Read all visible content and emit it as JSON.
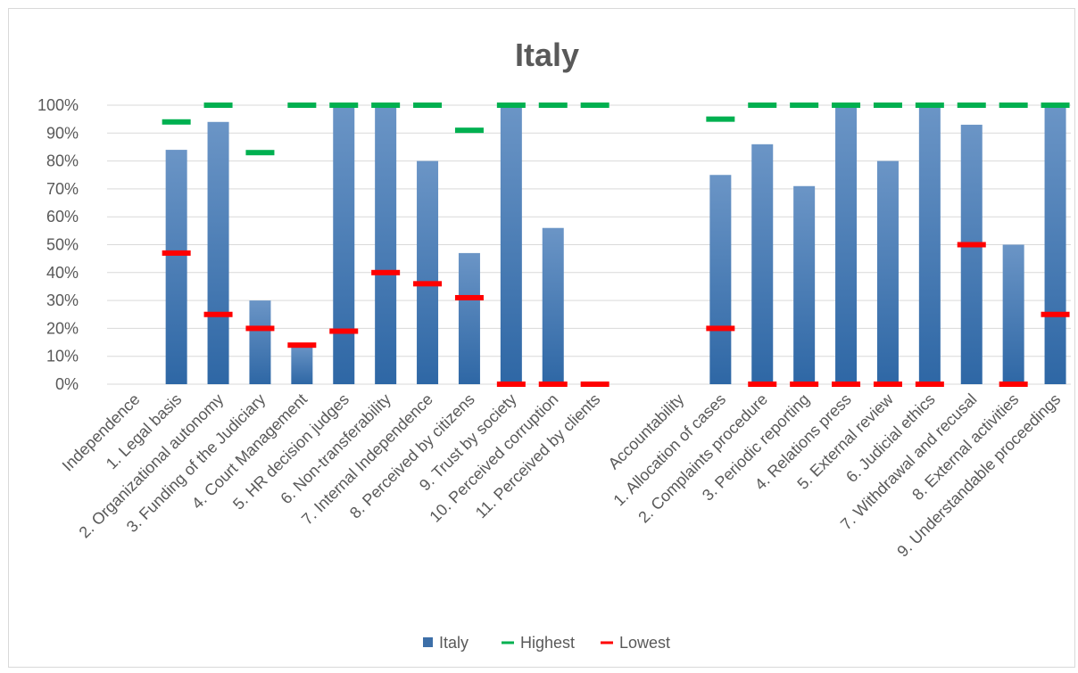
{
  "chart_data": {
    "type": "bar",
    "title": "Italy",
    "xlabel": "",
    "ylabel": "",
    "ylim": [
      0,
      100
    ],
    "y_unit": "%",
    "y_ticks": [
      0,
      10,
      20,
      30,
      40,
      50,
      60,
      70,
      80,
      90,
      100
    ],
    "grid": true,
    "legend_position": "bottom",
    "categories": [
      "Independence",
      "1. Legal basis",
      "2. Organizational autonomy",
      "3. Funding of the Judiciary",
      "4. Court Management",
      "5. HR decision judges",
      "6. Non-transferability",
      "7. Internal Independence",
      "8. Perceived by citizens",
      "9. Trust by society",
      "10. Perceived corruption",
      "11. Perceived by clients",
      "",
      "Accountability",
      "1. Allocation of cases",
      "2. Complaints procedure",
      "3. Periodic reporting",
      "4. Relations press",
      "5. External review",
      "6. Judicial ethics",
      "7. Withdrawal and recusal",
      "8. External activities",
      "9. Understandable proceedings"
    ],
    "series": [
      {
        "name": "Italy",
        "kind": "bar",
        "color": "#3d6fa8",
        "values": [
          null,
          84,
          94,
          30,
          14,
          100,
          100,
          80,
          47,
          100,
          56,
          null,
          null,
          null,
          75,
          86,
          71,
          100,
          80,
          100,
          93,
          50,
          100
        ]
      },
      {
        "name": "Highest",
        "kind": "marker",
        "color": "#00b050",
        "values": [
          null,
          94,
          100,
          83,
          100,
          100,
          100,
          100,
          91,
          100,
          100,
          100,
          null,
          null,
          95,
          100,
          100,
          100,
          100,
          100,
          100,
          100,
          100
        ]
      },
      {
        "name": "Lowest",
        "kind": "marker",
        "color": "#ff0000",
        "values": [
          null,
          47,
          25,
          20,
          14,
          19,
          40,
          36,
          31,
          0,
          0,
          0,
          null,
          null,
          20,
          0,
          0,
          0,
          0,
          0,
          50,
          0,
          25
        ]
      }
    ]
  }
}
